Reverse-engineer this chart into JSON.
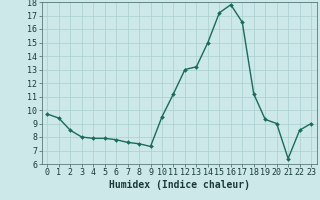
{
  "x": [
    0,
    1,
    2,
    3,
    4,
    5,
    6,
    7,
    8,
    9,
    10,
    11,
    12,
    13,
    14,
    15,
    16,
    17,
    18,
    19,
    20,
    21,
    22,
    23
  ],
  "y": [
    9.7,
    9.4,
    8.5,
    8.0,
    7.9,
    7.9,
    7.8,
    7.6,
    7.5,
    7.3,
    9.5,
    11.2,
    13.0,
    13.2,
    15.0,
    17.2,
    17.8,
    16.5,
    11.2,
    9.3,
    9.0,
    6.4,
    8.5,
    9.0
  ],
  "line_color": "#1a6b5a",
  "marker": "D",
  "marker_size": 2.0,
  "bg_color": "#cce8e8",
  "grid_color": "#aacfcf",
  "xlabel": "Humidex (Indice chaleur)",
  "ylim": [
    6,
    18
  ],
  "xlim": [
    -0.5,
    23.5
  ],
  "yticks": [
    6,
    7,
    8,
    9,
    10,
    11,
    12,
    13,
    14,
    15,
    16,
    17,
    18
  ],
  "xticks": [
    0,
    1,
    2,
    3,
    4,
    5,
    6,
    7,
    8,
    9,
    10,
    11,
    12,
    13,
    14,
    15,
    16,
    17,
    18,
    19,
    20,
    21,
    22,
    23
  ],
  "tick_fontsize": 6.0,
  "xlabel_fontsize": 7.0,
  "linewidth": 1.0,
  "spine_color": "#446666"
}
